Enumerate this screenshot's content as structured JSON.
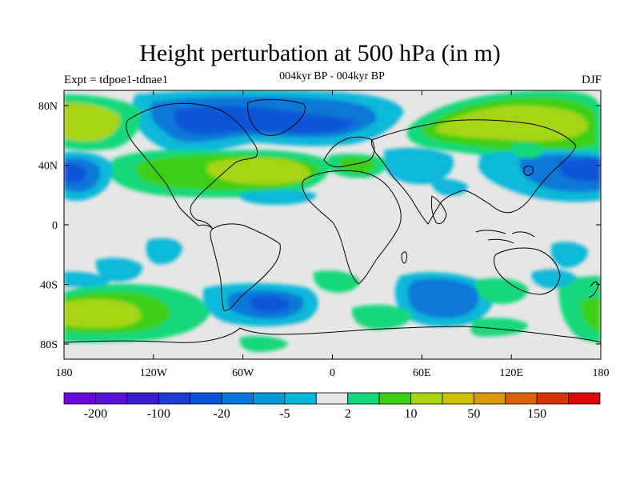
{
  "title": "Height perturbation at 500 hPa (in m)",
  "subtitle_left": "Expt = tdpoe1-tdnae1",
  "subtitle_center": "004kyr BP - 004kyr BP",
  "subtitle_right": "DJF",
  "axes": {
    "lon_ticks": [
      "180",
      "120W",
      "60W",
      "0",
      "60E",
      "120E",
      "180"
    ],
    "lat_ticks": [
      "80N",
      "40N",
      "0",
      "40S",
      "80S"
    ]
  },
  "colorbar": {
    "colors": [
      "#6a0ad8",
      "#5a12d6",
      "#3b1ecf",
      "#1e3bd6",
      "#0a55d6",
      "#0a78d8",
      "#0a98d6",
      "#0ab8d8",
      "#e6e6e6",
      "#14d87a",
      "#3ccf14",
      "#a8d414",
      "#cfc00a",
      "#d89a0a",
      "#d8640a",
      "#d8340a",
      "#d80a0a"
    ],
    "labels": [
      "-200",
      "-100",
      "-20",
      "-5",
      "2",
      "10",
      "50",
      "150"
    ]
  },
  "colors": {
    "background": "#e6e6e6",
    "neg_strong": "#0a55d6",
    "neg_mid": "#0a78d8",
    "neg_weak": "#0ab8d8",
    "pos_weak": "#14d87a",
    "pos_mid": "#3ccf14",
    "pos_strong": "#a8d414"
  }
}
